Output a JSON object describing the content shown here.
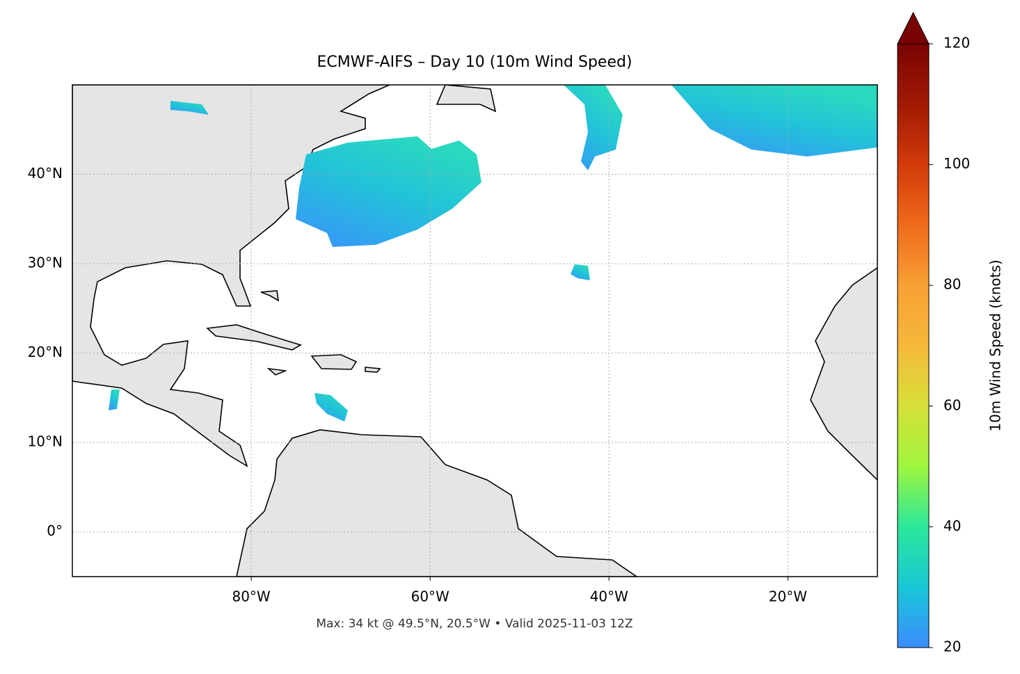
{
  "chart_data": {
    "type": "map",
    "title": "ECMWF-AIFS – Day 10 (10m Wind Speed)",
    "footer": "Max: 34 kt @ 49.5°N, 20.5°W • Valid 2025-11-03 12Z",
    "xlim": [
      -100,
      -10
    ],
    "ylim": [
      -5,
      50
    ],
    "grid": true,
    "xticks": [
      {
        "value": -80,
        "label": "80°W"
      },
      {
        "value": -60,
        "label": "60°W"
      },
      {
        "value": -40,
        "label": "40°W"
      },
      {
        "value": -20,
        "label": "20°W"
      }
    ],
    "yticks": [
      {
        "value": 0,
        "label": "0°"
      },
      {
        "value": 10,
        "label": "10°N"
      },
      {
        "value": 20,
        "label": "20°N"
      },
      {
        "value": 30,
        "label": "30°N"
      },
      {
        "value": 40,
        "label": "40°N"
      }
    ],
    "colorbar": {
      "label": "10m Wind Speed (knots)",
      "lim": [
        20,
        120
      ],
      "ticks": [
        20,
        40,
        60,
        80,
        100,
        120
      ]
    }
  }
}
